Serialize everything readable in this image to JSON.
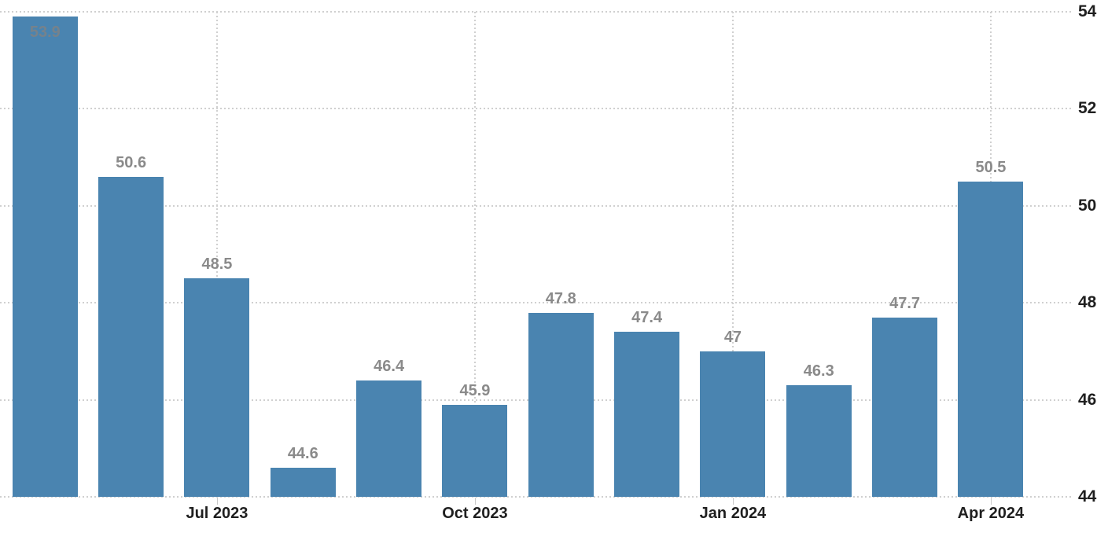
{
  "chart_data": {
    "type": "bar",
    "title": "",
    "legend": "none",
    "grid": "dotted",
    "values": [
      53.9,
      50.6,
      48.5,
      44.6,
      46.4,
      45.9,
      47.8,
      47.4,
      47,
      46.3,
      47.7,
      50.5
    ],
    "bar_labels": [
      "53.9",
      "50.6",
      "48.5",
      "44.6",
      "46.4",
      "45.9",
      "47.8",
      "47.4",
      "47",
      "46.3",
      "47.7",
      "50.5"
    ],
    "x_ticks": [
      {
        "bar_index": 2,
        "label": "Jul 2023"
      },
      {
        "bar_index": 5,
        "label": "Oct 2023"
      },
      {
        "bar_index": 8,
        "label": "Jan 2024"
      },
      {
        "bar_index": 11,
        "label": "Apr 2024"
      }
    ],
    "y_ticks": [
      "54",
      "52",
      "50",
      "48",
      "46",
      "44"
    ],
    "y_tick_values": [
      54,
      52,
      50,
      48,
      46,
      44
    ],
    "ylim": [
      44,
      54
    ],
    "colors": {
      "bar": "#4a84b0",
      "value_label": "#8a8a8a",
      "value_label_on_bar": "#76828b",
      "axis_label": "#1f1f1f",
      "gridline": "#d0d0d0",
      "background": "#ffffff"
    }
  }
}
